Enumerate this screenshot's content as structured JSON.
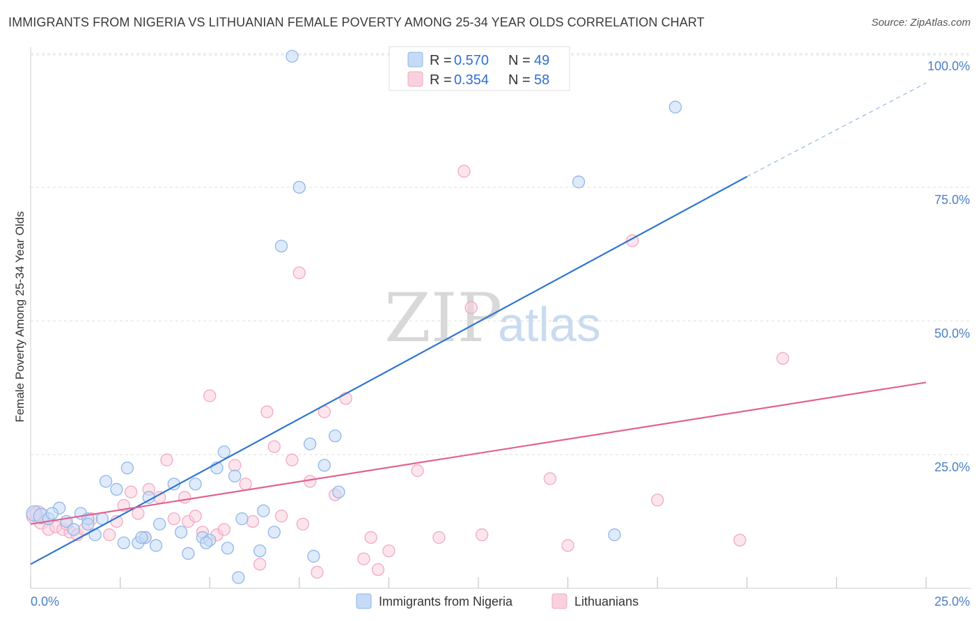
{
  "header": {
    "title": "IMMIGRANTS FROM NIGERIA VS LITHUANIAN FEMALE POVERTY AMONG 25-34 YEAR OLDS CORRELATION CHART",
    "source": "Source: ZipAtlas.com"
  },
  "watermark": {
    "zip": "ZIP",
    "atlas": "atlas"
  },
  "chart_data": {
    "type": "scatter",
    "title": "IMMIGRANTS FROM NIGERIA VS LITHUANIAN FEMALE POVERTY AMONG 25-34 YEAR OLDS CORRELATION CHART",
    "xlabel": "",
    "ylabel": "Female Poverty Among 25-34 Year Olds",
    "xlim": [
      0,
      25
    ],
    "ylim": [
      0,
      100
    ],
    "x_tick_labels": [
      "0.0%",
      "25.0%"
    ],
    "y_tick_labels": [
      "25.0%",
      "50.0%",
      "75.0%",
      "100.0%"
    ],
    "y_ticks": [
      25,
      50,
      75,
      100
    ],
    "grid": true,
    "legend_position": "top-center",
    "legend": [
      {
        "r_label": "R =",
        "r_value": "0.570",
        "n_label": "N =",
        "n_value": "49"
      },
      {
        "r_label": "R =",
        "r_value": "0.354",
        "n_label": "N =",
        "n_value": "58"
      }
    ],
    "series": [
      {
        "name": "Immigrants from Nigeria",
        "color": "#8fb7ea",
        "fill": "#c5daf5",
        "line_color": "#2f74d0",
        "trend": {
          "x0": 0,
          "y0": 4.5,
          "x1": 20,
          "y1": 77,
          "dashed_to_x": 25,
          "dashed_to_y": 94.5
        },
        "points": [
          [
            0.1,
            14
          ],
          [
            0.3,
            13.5
          ],
          [
            0.5,
            13
          ],
          [
            0.8,
            15
          ],
          [
            1.0,
            12.5
          ],
          [
            1.2,
            11
          ],
          [
            1.4,
            14
          ],
          [
            1.6,
            13
          ],
          [
            1.8,
            10
          ],
          [
            2.0,
            13
          ],
          [
            2.1,
            20
          ],
          [
            2.4,
            18.5
          ],
          [
            2.6,
            8.5
          ],
          [
            2.7,
            22.5
          ],
          [
            3.0,
            8.5
          ],
          [
            3.2,
            9.5
          ],
          [
            3.3,
            17
          ],
          [
            3.5,
            8
          ],
          [
            3.6,
            12
          ],
          [
            4.0,
            19.5
          ],
          [
            4.2,
            10.5
          ],
          [
            4.4,
            6.5
          ],
          [
            4.6,
            19.5
          ],
          [
            4.8,
            9.5
          ],
          [
            5.0,
            9
          ],
          [
            5.2,
            22.5
          ],
          [
            5.4,
            25.5
          ],
          [
            5.5,
            7.5
          ],
          [
            5.7,
            21
          ],
          [
            5.8,
            2
          ],
          [
            5.9,
            13
          ],
          [
            6.4,
            7
          ],
          [
            6.5,
            14.5
          ],
          [
            6.8,
            10.5
          ],
          [
            7.0,
            64
          ],
          [
            7.3,
            99.5
          ],
          [
            7.5,
            75
          ],
          [
            7.8,
            27
          ],
          [
            7.9,
            6
          ],
          [
            8.2,
            23
          ],
          [
            8.5,
            28.5
          ],
          [
            8.6,
            18
          ],
          [
            15.3,
            76
          ],
          [
            16.3,
            10
          ],
          [
            18.0,
            90
          ],
          [
            0.6,
            14
          ],
          [
            1.6,
            12
          ],
          [
            3.1,
            9.5
          ],
          [
            4.9,
            8.5
          ]
        ]
      },
      {
        "name": "Lithuanians",
        "color": "#f2a9c1",
        "fill": "#f9d0de",
        "line_color": "#e0628f",
        "trend": {
          "x0": 0,
          "y0": 12,
          "x1": 25,
          "y1": 38.5
        },
        "points": [
          [
            0.1,
            13.5
          ],
          [
            0.3,
            12.5
          ],
          [
            0.5,
            11
          ],
          [
            0.7,
            11.5
          ],
          [
            0.9,
            11
          ],
          [
            1.1,
            10.5
          ],
          [
            1.3,
            10
          ],
          [
            1.5,
            11
          ],
          [
            1.7,
            13
          ],
          [
            2.2,
            10
          ],
          [
            2.4,
            12.5
          ],
          [
            2.6,
            15.5
          ],
          [
            2.8,
            18
          ],
          [
            3.0,
            14
          ],
          [
            3.2,
            9.5
          ],
          [
            3.3,
            18.5
          ],
          [
            3.6,
            17
          ],
          [
            3.8,
            24
          ],
          [
            4.0,
            13
          ],
          [
            4.3,
            17
          ],
          [
            4.4,
            12.5
          ],
          [
            4.6,
            13.5
          ],
          [
            4.8,
            10.5
          ],
          [
            5.0,
            36
          ],
          [
            5.2,
            10
          ],
          [
            5.4,
            11
          ],
          [
            5.7,
            23
          ],
          [
            6.0,
            19.5
          ],
          [
            6.2,
            12.5
          ],
          [
            6.4,
            4.5
          ],
          [
            6.6,
            33
          ],
          [
            6.8,
            26.5
          ],
          [
            7.0,
            13.5
          ],
          [
            7.3,
            24
          ],
          [
            7.5,
            59
          ],
          [
            7.6,
            12
          ],
          [
            7.8,
            20
          ],
          [
            8.0,
            3
          ],
          [
            8.2,
            33
          ],
          [
            8.5,
            17.5
          ],
          [
            8.8,
            35.5
          ],
          [
            9.3,
            5.5
          ],
          [
            9.5,
            9.5
          ],
          [
            9.7,
            3.5
          ],
          [
            10.0,
            7
          ],
          [
            10.8,
            22
          ],
          [
            11.4,
            9.5
          ],
          [
            12.1,
            78
          ],
          [
            12.3,
            52.5
          ],
          [
            12.6,
            10
          ],
          [
            14.5,
            20.5
          ],
          [
            15.0,
            8
          ],
          [
            16.8,
            65
          ],
          [
            17.5,
            16.5
          ],
          [
            19.8,
            9
          ],
          [
            21.0,
            43
          ],
          [
            0.2,
            14
          ],
          [
            1.0,
            12
          ]
        ]
      }
    ]
  }
}
